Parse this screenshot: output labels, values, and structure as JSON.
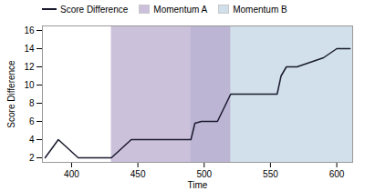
{
  "chart_data": {
    "type": "line",
    "title": "",
    "xlabel": "Time",
    "ylabel": "Score Difference",
    "x": [
      380,
      390,
      405,
      415,
      425,
      430,
      445,
      455,
      490,
      493,
      498,
      500,
      505,
      510,
      520,
      525,
      540,
      555,
      558,
      562,
      570,
      590,
      600,
      610
    ],
    "series": [
      {
        "name": "Score Difference",
        "color": "#1a1a2e",
        "values": [
          2,
          4,
          2,
          2,
          2,
          2,
          4,
          4,
          4,
          5.8,
          6,
          6,
          6,
          6,
          9,
          9,
          9,
          9,
          11,
          12,
          12,
          13,
          14,
          14
        ]
      }
    ],
    "spans": [
      {
        "name": "Momentum A",
        "x": [
          430,
          520
        ],
        "color": "#b09fc8"
      },
      {
        "name": "Momentum B",
        "x": [
          490,
          612
        ],
        "color": "#b8cfe0"
      }
    ],
    "xlim": [
      378,
      612
    ],
    "ylim": [
      1.5,
      16.5
    ],
    "xticks": [
      400,
      450,
      500,
      550,
      600
    ],
    "yticks": [
      2,
      4,
      6,
      8,
      10,
      12,
      14,
      16
    ],
    "grid": false,
    "legend": "upper left"
  }
}
